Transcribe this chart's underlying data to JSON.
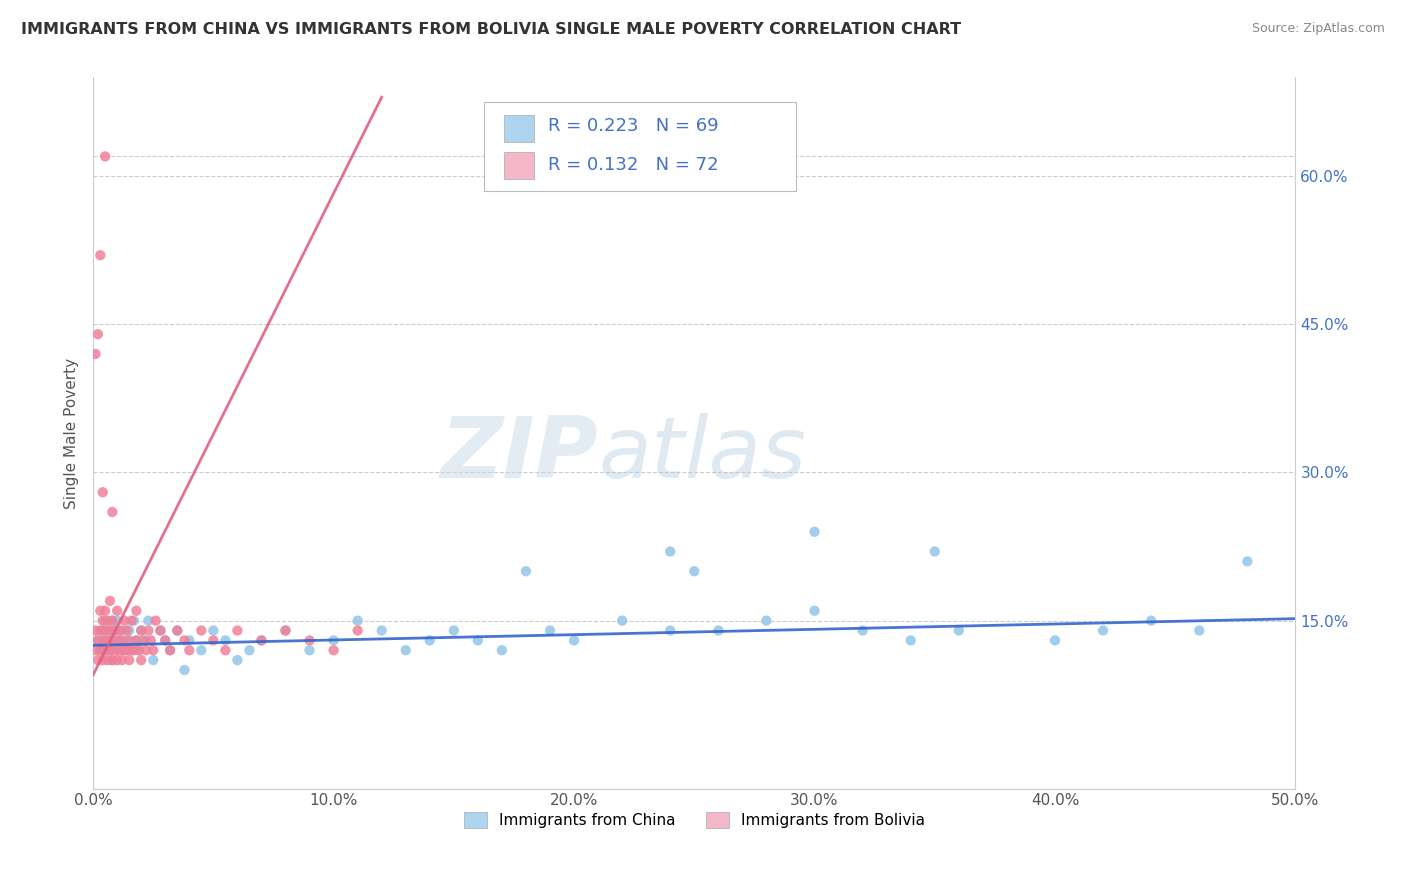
{
  "title": "IMMIGRANTS FROM CHINA VS IMMIGRANTS FROM BOLIVIA SINGLE MALE POVERTY CORRELATION CHART",
  "source": "Source: ZipAtlas.com",
  "ylabel": "Single Male Poverty",
  "xlim": [
    0.0,
    0.5
  ],
  "ylim": [
    -0.02,
    0.7
  ],
  "xtick_vals": [
    0.0,
    0.1,
    0.2,
    0.3,
    0.4,
    0.5
  ],
  "ytick_vals_right": [
    0.15,
    0.3,
    0.45,
    0.6
  ],
  "china_scatter_color": "#92C5E8",
  "bolivia_scatter_color": "#F08098",
  "china_legend_color": "#AED4F0",
  "bolivia_legend_color": "#F4B8C8",
  "trendline_china_color": "#3366CC",
  "trendline_bolivia_color": "#E06080",
  "R_china": 0.223,
  "N_china": 69,
  "R_bolivia": 0.132,
  "N_bolivia": 72,
  "legend_label_china": "Immigrants from China",
  "legend_label_bolivia": "Immigrants from Bolivia",
  "watermark_zip": "ZIP",
  "watermark_atlas": "atlas",
  "background_color": "#FFFFFF",
  "grid_color": "#CCCCCC",
  "china_x": [
    0.002,
    0.003,
    0.004,
    0.005,
    0.005,
    0.006,
    0.007,
    0.007,
    0.008,
    0.008,
    0.009,
    0.009,
    0.01,
    0.01,
    0.011,
    0.012,
    0.013,
    0.014,
    0.015,
    0.016,
    0.017,
    0.018,
    0.019,
    0.02,
    0.022,
    0.023,
    0.025,
    0.028,
    0.03,
    0.032,
    0.035,
    0.038,
    0.04,
    0.045,
    0.05,
    0.055,
    0.06,
    0.065,
    0.07,
    0.08,
    0.09,
    0.1,
    0.11,
    0.12,
    0.13,
    0.14,
    0.15,
    0.16,
    0.17,
    0.19,
    0.2,
    0.22,
    0.24,
    0.26,
    0.28,
    0.3,
    0.32,
    0.34,
    0.36,
    0.4,
    0.42,
    0.44,
    0.46,
    0.24,
    0.3,
    0.35,
    0.25,
    0.18,
    0.48
  ],
  "china_y": [
    0.13,
    0.12,
    0.14,
    0.13,
    0.15,
    0.12,
    0.14,
    0.13,
    0.11,
    0.15,
    0.13,
    0.14,
    0.12,
    0.15,
    0.13,
    0.14,
    0.12,
    0.13,
    0.14,
    0.12,
    0.15,
    0.13,
    0.12,
    0.14,
    0.13,
    0.15,
    0.11,
    0.14,
    0.13,
    0.12,
    0.14,
    0.1,
    0.13,
    0.12,
    0.14,
    0.13,
    0.11,
    0.12,
    0.13,
    0.14,
    0.12,
    0.13,
    0.15,
    0.14,
    0.12,
    0.13,
    0.14,
    0.13,
    0.12,
    0.14,
    0.13,
    0.15,
    0.14,
    0.14,
    0.15,
    0.16,
    0.14,
    0.13,
    0.14,
    0.13,
    0.14,
    0.15,
    0.14,
    0.22,
    0.24,
    0.22,
    0.2,
    0.2,
    0.21
  ],
  "bolivia_x": [
    0.001,
    0.001,
    0.002,
    0.002,
    0.003,
    0.003,
    0.003,
    0.004,
    0.004,
    0.004,
    0.005,
    0.005,
    0.005,
    0.006,
    0.006,
    0.006,
    0.007,
    0.007,
    0.007,
    0.008,
    0.008,
    0.008,
    0.009,
    0.009,
    0.01,
    0.01,
    0.01,
    0.011,
    0.011,
    0.012,
    0.012,
    0.013,
    0.013,
    0.014,
    0.014,
    0.015,
    0.015,
    0.016,
    0.016,
    0.017,
    0.018,
    0.018,
    0.019,
    0.02,
    0.02,
    0.021,
    0.022,
    0.023,
    0.024,
    0.025,
    0.026,
    0.028,
    0.03,
    0.032,
    0.035,
    0.038,
    0.04,
    0.045,
    0.05,
    0.055,
    0.06,
    0.07,
    0.08,
    0.09,
    0.1,
    0.11,
    0.004,
    0.008,
    0.001,
    0.002,
    0.003,
    0.005
  ],
  "bolivia_y": [
    0.12,
    0.14,
    0.11,
    0.13,
    0.12,
    0.14,
    0.16,
    0.11,
    0.13,
    0.15,
    0.12,
    0.14,
    0.16,
    0.11,
    0.13,
    0.15,
    0.12,
    0.14,
    0.17,
    0.11,
    0.13,
    0.15,
    0.12,
    0.14,
    0.11,
    0.13,
    0.16,
    0.12,
    0.14,
    0.11,
    0.13,
    0.12,
    0.15,
    0.12,
    0.14,
    0.11,
    0.13,
    0.12,
    0.15,
    0.12,
    0.13,
    0.16,
    0.12,
    0.11,
    0.14,
    0.13,
    0.12,
    0.14,
    0.13,
    0.12,
    0.15,
    0.14,
    0.13,
    0.12,
    0.14,
    0.13,
    0.12,
    0.14,
    0.13,
    0.12,
    0.14,
    0.13,
    0.14,
    0.13,
    0.12,
    0.14,
    0.28,
    0.26,
    0.42,
    0.44,
    0.52,
    0.62
  ]
}
